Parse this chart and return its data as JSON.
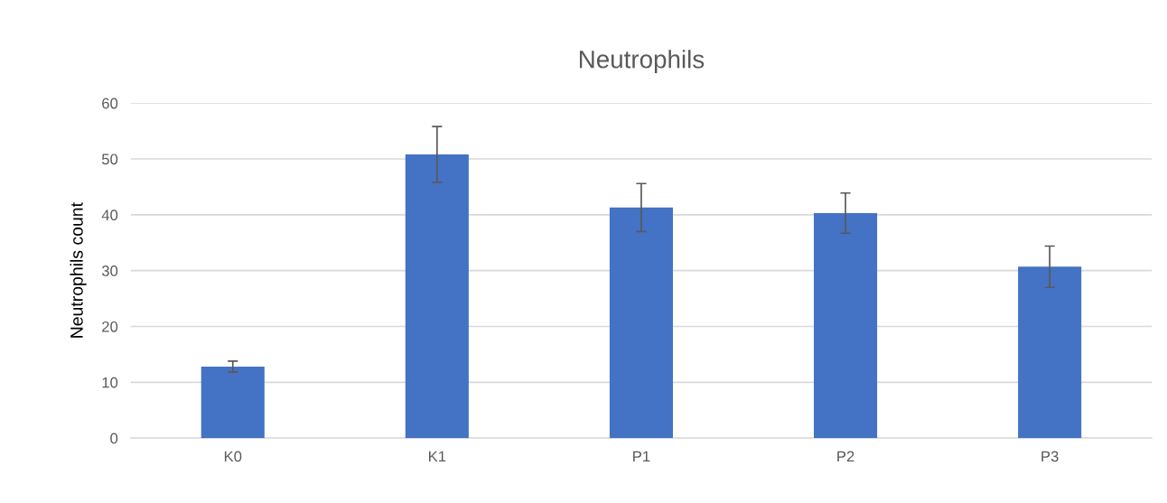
{
  "chart_data": {
    "type": "bar",
    "title": "Neutrophils",
    "ylabel": "Neutrophils count",
    "categories": [
      "K0",
      "K1",
      "P1",
      "P2",
      "P3"
    ],
    "values": [
      12.8,
      50.8,
      41.3,
      40.3,
      30.7
    ],
    "errors": [
      1,
      5,
      4.3,
      3.6,
      3.7
    ],
    "color": "#4472c4",
    "ylim": [
      0,
      60
    ],
    "yticks": [
      0,
      10,
      20,
      30,
      40,
      50,
      60
    ],
    "grid": "y"
  }
}
